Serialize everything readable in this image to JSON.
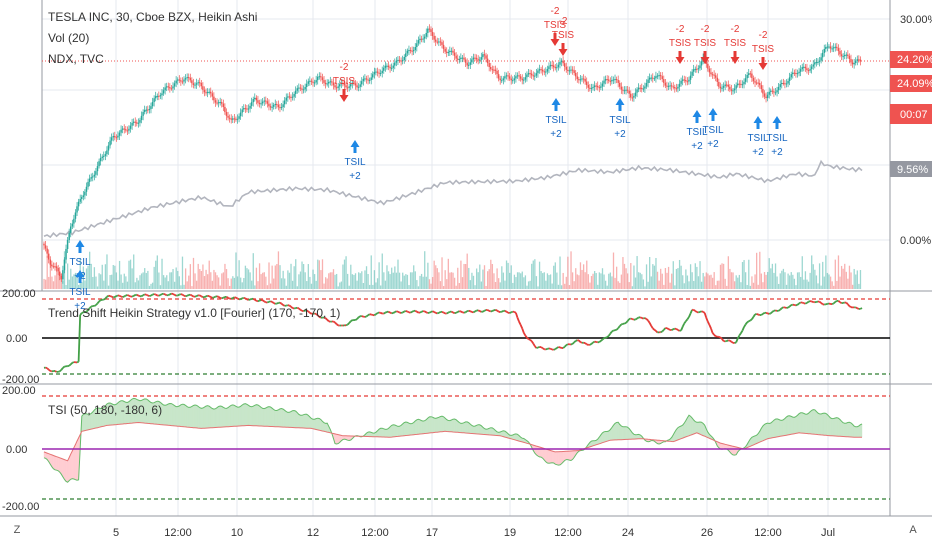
{
  "legend": {
    "main": "TESLA INC, 30, Cboe BZX, Heikin Ashi",
    "vol": "Vol (20)",
    "ndx": "NDX, TVC",
    "strategy": "Trend Shift Heikin Strategy v1.0 [Fourier] (170, -170, 1)",
    "tsi": "TSI (50, 180, -180, 6)"
  },
  "corner": {
    "left": "Z",
    "right": "A"
  },
  "colors": {
    "up": "#26a69a",
    "down": "#ef5350",
    "line_green": "#43a047",
    "line_red": "#e53935",
    "grey": "#b2b5be",
    "tag_red": "#ef5350",
    "tag_grey": "#9598a1",
    "tsi_fill_green": "#c8e6c9",
    "tsi_fill_red": "#ffcdd2",
    "purple": "#9c27b0"
  },
  "chart_data": [
    {
      "type": "candlestick",
      "title": "TESLA INC, 30, Cboe BZX, Heikin Ashi",
      "yaxis": "percent",
      "y_ticks": [
        "30.00%",
        "0.00%"
      ],
      "price_tags": [
        "24.20%",
        "24.09%",
        "00:07"
      ],
      "ndx_tag": "9.56%",
      "x_ticks": [
        "5",
        "12:00",
        "10",
        "12",
        "12:00",
        "17",
        "19",
        "12:00",
        "24",
        "26",
        "12:00",
        "Jul"
      ],
      "anchors": [
        [
          0,
          -0.5
        ],
        [
          5,
          -3
        ],
        [
          12,
          -5
        ],
        [
          18,
          2
        ],
        [
          25,
          6
        ],
        [
          35,
          10
        ],
        [
          45,
          14
        ],
        [
          60,
          16
        ],
        [
          75,
          20
        ],
        [
          90,
          22
        ],
        [
          100,
          21
        ],
        [
          115,
          18
        ],
        [
          120,
          16
        ],
        [
          135,
          19
        ],
        [
          150,
          18
        ],
        [
          160,
          20
        ],
        [
          175,
          22
        ],
        [
          185,
          21
        ],
        [
          200,
          21
        ],
        [
          215,
          23
        ],
        [
          225,
          24
        ],
        [
          238,
          26.5
        ],
        [
          245,
          28.5
        ],
        [
          255,
          26
        ],
        [
          270,
          24
        ],
        [
          280,
          25
        ],
        [
          290,
          22
        ],
        [
          305,
          22
        ],
        [
          318,
          23
        ],
        [
          330,
          24
        ],
        [
          338,
          22.5
        ],
        [
          350,
          20.5
        ],
        [
          362,
          22
        ],
        [
          374,
          19.5
        ],
        [
          380,
          20.5
        ],
        [
          390,
          22.5
        ],
        [
          400,
          20.5
        ],
        [
          411,
          22
        ],
        [
          420,
          24.5
        ],
        [
          430,
          21
        ],
        [
          440,
          20.5
        ],
        [
          450,
          22.5
        ],
        [
          460,
          19.5
        ],
        [
          470,
          21
        ],
        [
          480,
          23
        ],
        [
          490,
          23.5
        ],
        [
          500,
          26.5
        ],
        [
          510,
          25
        ],
        [
          515,
          24.2
        ]
      ],
      "volume": [
        4,
        3,
        9,
        3,
        7,
        3,
        2,
        4,
        8,
        6,
        5,
        4,
        2,
        9,
        1,
        7,
        3,
        8,
        4,
        4,
        4,
        3,
        1,
        8,
        2,
        8,
        3,
        6,
        6,
        9,
        6,
        3,
        6,
        4,
        1,
        5,
        4,
        6,
        2,
        6,
        9,
        1,
        5,
        5,
        7,
        6,
        4,
        2,
        7,
        4,
        2,
        6,
        4,
        2,
        7,
        7,
        5,
        9,
        2,
        4,
        3,
        4,
        4,
        4,
        5,
        4,
        5,
        1,
        2,
        2,
        6,
        7,
        8,
        4,
        1,
        9,
        5,
        4,
        4,
        2,
        4,
        4,
        5,
        2,
        7,
        7,
        4,
        1,
        8,
        1,
        5,
        2,
        4,
        9,
        1,
        9,
        4,
        2,
        6,
        5,
        5,
        8,
        5,
        6,
        4,
        7,
        4,
        2,
        5,
        5,
        5,
        4,
        1,
        4,
        4,
        6,
        5,
        3,
        1,
        4
      ],
      "ndx": [
        [
          0,
          0.5
        ],
        [
          18,
          1
        ],
        [
          40,
          2.5
        ],
        [
          70,
          4.5
        ],
        [
          100,
          5.8
        ],
        [
          118,
          4.5
        ],
        [
          130,
          6.5
        ],
        [
          160,
          7
        ],
        [
          180,
          6.8
        ],
        [
          215,
          5
        ],
        [
          230,
          6
        ],
        [
          255,
          7.8
        ],
        [
          300,
          8
        ],
        [
          320,
          8.5
        ],
        [
          340,
          9.5
        ],
        [
          360,
          9.2
        ],
        [
          378,
          9.8
        ],
        [
          398,
          9.5
        ],
        [
          414,
          9
        ],
        [
          430,
          8.5
        ],
        [
          440,
          9
        ],
        [
          460,
          8
        ],
        [
          478,
          9
        ],
        [
          490,
          8.7
        ],
        [
          493,
          10.5
        ],
        [
          500,
          10
        ],
        [
          515,
          9.56
        ]
      ],
      "signals": [
        {
          "type": "sell",
          "label": "TSIS",
          "value": "-2"
        },
        {
          "type": "buy",
          "label": "TSIL",
          "value": "+2"
        },
        {
          "type": "sell",
          "label": "TSIS",
          "value": "-2"
        },
        {
          "type": "sell",
          "label": "TSIS",
          "value": "-2"
        },
        {
          "type": "buy",
          "label": "TSIL",
          "value": "+2"
        },
        {
          "type": "buy",
          "label": "TSIL",
          "value": "+2"
        },
        {
          "type": "sell",
          "label": "TSIS",
          "value": "-2"
        },
        {
          "type": "buy",
          "label": "TSIL",
          "value": "+2"
        },
        {
          "type": "sell",
          "label": "TSIS",
          "value": "-2"
        },
        {
          "type": "buy",
          "label": "TSIL",
          "value": "+2"
        },
        {
          "type": "sell",
          "label": "TSIS",
          "value": "-2"
        },
        {
          "type": "buy",
          "label": "TSIL",
          "value": "+2"
        },
        {
          "type": "sell",
          "label": "TSIS",
          "value": "-2"
        },
        {
          "type": "buy",
          "label": "TSIL",
          "value": "+2"
        },
        {
          "type": "buy",
          "label": "TSIL",
          "value": "+2"
        },
        {
          "type": "buy",
          "label": "TSIL",
          "value": "+2"
        }
      ]
    },
    {
      "type": "line",
      "title": "Trend Shift Heikin Strategy v1.0 [Fourier] (170, -170, 1)",
      "y_ticks": [
        "200.00",
        "0.00",
        "-200.00"
      ],
      "ylim": [
        -200,
        200
      ],
      "levels": [
        170,
        0,
        -170
      ],
      "series": [
        [
          0,
          -130
        ],
        [
          8,
          -150
        ],
        [
          15,
          -120
        ],
        [
          22,
          -100
        ],
        [
          23,
          100
        ],
        [
          40,
          180
        ],
        [
          80,
          190
        ],
        [
          130,
          170
        ],
        [
          150,
          150
        ],
        [
          170,
          110
        ],
        [
          190,
          50
        ],
        [
          200,
          90
        ],
        [
          215,
          110
        ],
        [
          235,
          115
        ],
        [
          255,
          110
        ],
        [
          285,
          120
        ],
        [
          300,
          110
        ],
        [
          305,
          20
        ],
        [
          313,
          -40
        ],
        [
          322,
          -50
        ],
        [
          330,
          -40
        ],
        [
          340,
          -10
        ],
        [
          345,
          -30
        ],
        [
          355,
          -10
        ],
        [
          362,
          30
        ],
        [
          372,
          80
        ],
        [
          382,
          90
        ],
        [
          390,
          20
        ],
        [
          395,
          40
        ],
        [
          405,
          35
        ],
        [
          412,
          120
        ],
        [
          420,
          110
        ],
        [
          425,
          20
        ],
        [
          432,
          -10
        ],
        [
          440,
          -20
        ],
        [
          445,
          50
        ],
        [
          452,
          100
        ],
        [
          462,
          110
        ],
        [
          470,
          130
        ],
        [
          480,
          150
        ],
        [
          490,
          160
        ],
        [
          498,
          145
        ],
        [
          505,
          160
        ],
        [
          510,
          150
        ],
        [
          515,
          130
        ]
      ]
    },
    {
      "type": "area",
      "title": "TSI (50, 180, -180, 6)",
      "y_ticks": [
        "200.00",
        "0.00",
        "-200.00"
      ],
      "ylim": [
        -200,
        200
      ],
      "levels": [
        180,
        0,
        -180
      ],
      "series": [
        {
          "name": "fast",
          "points": [
            [
              0,
              -30
            ],
            [
              15,
              -110
            ],
            [
              22,
              -100
            ],
            [
              24,
              110
            ],
            [
              40,
              150
            ],
            [
              60,
              170
            ],
            [
              80,
              150
            ],
            [
              110,
              140
            ],
            [
              130,
              150
            ],
            [
              160,
              125
            ],
            [
              180,
              90
            ],
            [
              185,
              20
            ],
            [
              195,
              35
            ],
            [
              220,
              75
            ],
            [
              250,
              110
            ],
            [
              275,
              80
            ],
            [
              290,
              60
            ],
            [
              305,
              40
            ],
            [
              315,
              -30
            ],
            [
              325,
              -55
            ],
            [
              335,
              -35
            ],
            [
              345,
              10
            ],
            [
              355,
              50
            ],
            [
              365,
              90
            ],
            [
              375,
              55
            ],
            [
              385,
              25
            ],
            [
              395,
              20
            ],
            [
              410,
              110
            ],
            [
              420,
              80
            ],
            [
              428,
              10
            ],
            [
              440,
              -20
            ],
            [
              450,
              35
            ],
            [
              460,
              90
            ],
            [
              475,
              110
            ],
            [
              490,
              130
            ],
            [
              505,
              100
            ],
            [
              515,
              80
            ]
          ]
        },
        {
          "name": "slow",
          "points": [
            [
              0,
              -10
            ],
            [
              15,
              -40
            ],
            [
              24,
              60
            ],
            [
              40,
              80
            ],
            [
              60,
              90
            ],
            [
              100,
              70
            ],
            [
              130,
              80
            ],
            [
              170,
              70
            ],
            [
              190,
              45
            ],
            [
              220,
              40
            ],
            [
              255,
              60
            ],
            [
              290,
              45
            ],
            [
              310,
              15
            ],
            [
              325,
              -10
            ],
            [
              340,
              -5
            ],
            [
              360,
              30
            ],
            [
              380,
              35
            ],
            [
              400,
              25
            ],
            [
              415,
              55
            ],
            [
              430,
              20
            ],
            [
              445,
              0
            ],
            [
              460,
              35
            ],
            [
              480,
              55
            ],
            [
              500,
              45
            ],
            [
              515,
              40
            ]
          ]
        }
      ]
    }
  ]
}
